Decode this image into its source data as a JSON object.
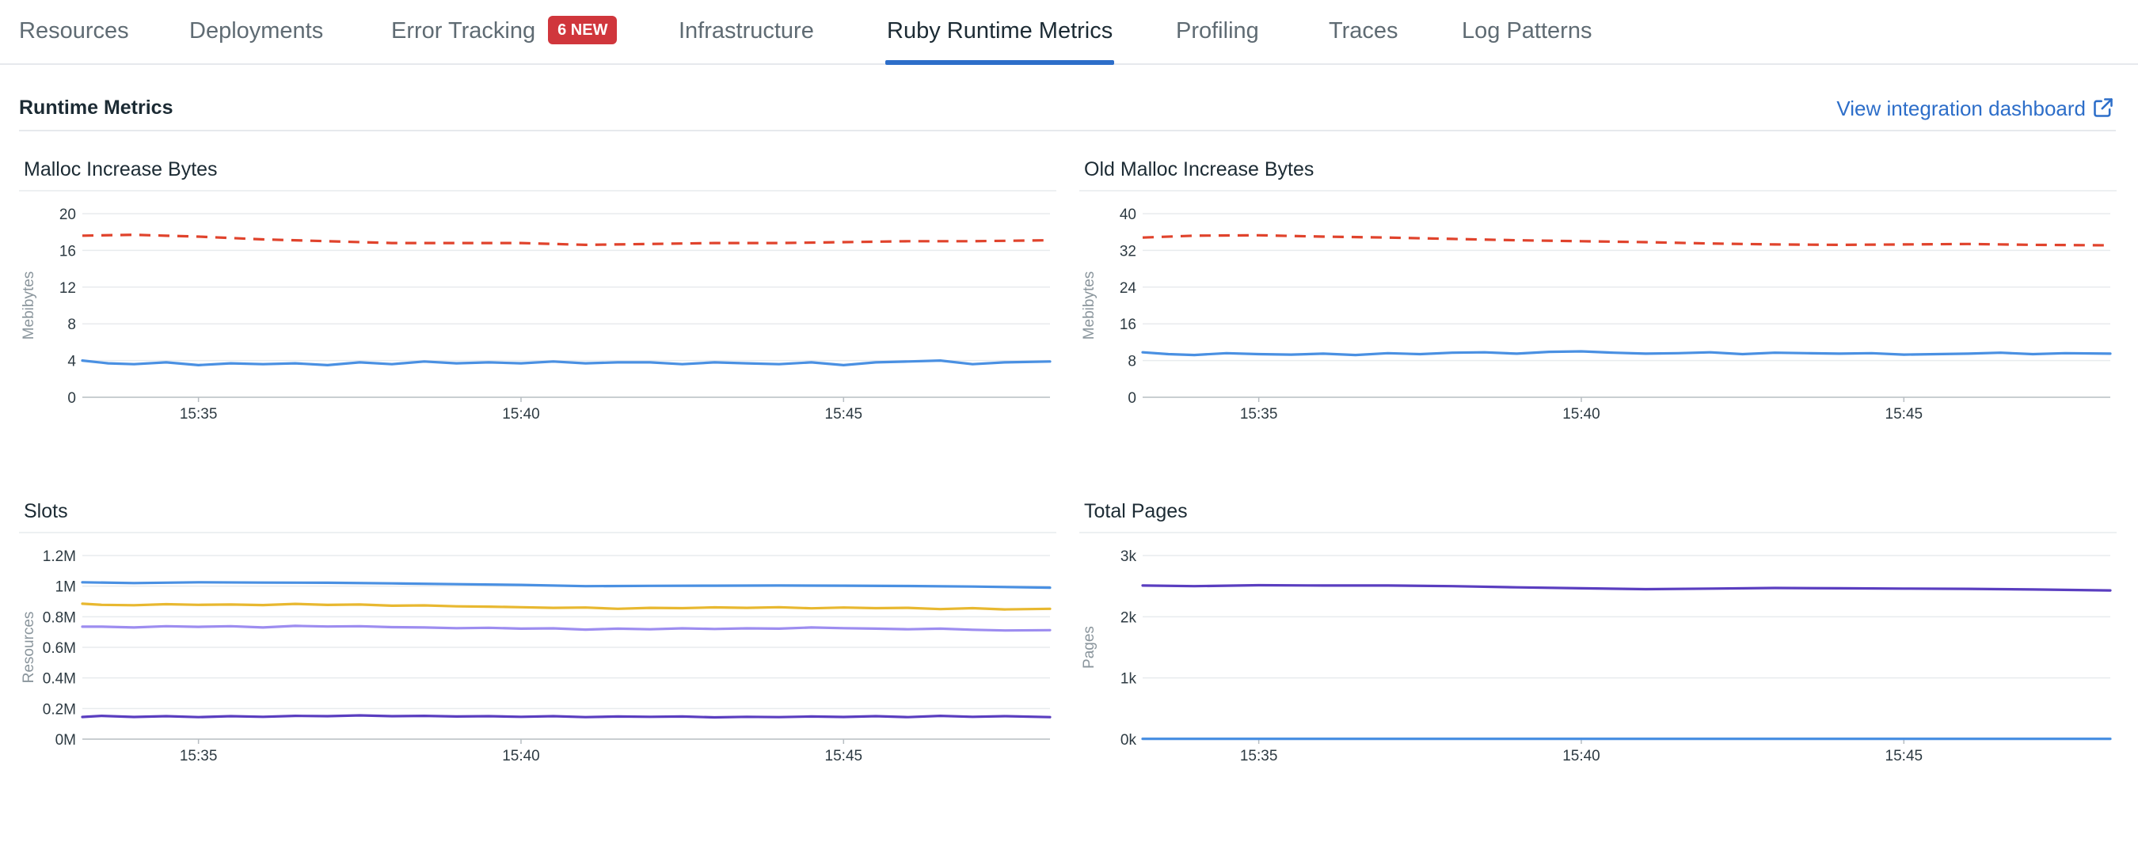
{
  "tabs": [
    {
      "label": "Resources",
      "active": false
    },
    {
      "label": "Deployments",
      "active": false
    },
    {
      "label": "Error Tracking",
      "active": false,
      "badge": "6 NEW"
    },
    {
      "label": "Infrastructure",
      "active": false
    },
    {
      "label": "Ruby Runtime Metrics",
      "active": true
    },
    {
      "label": "Profiling",
      "active": false
    },
    {
      "label": "Traces",
      "active": false
    },
    {
      "label": "Log Patterns",
      "active": false
    }
  ],
  "section": {
    "title": "Runtime Metrics",
    "link_label": "View integration dashboard",
    "link_icon": "external-link-icon"
  },
  "colors": {
    "accent": "#2d6ec9",
    "badge": "#d0363c",
    "red_dashed": "#e0432c",
    "blue": "#4a90e2",
    "yellow": "#e8b830",
    "lavender": "#9d8df0",
    "purple": "#5a3ec0"
  },
  "chart_data": [
    {
      "id": "malloc",
      "type": "line",
      "title": "Malloc Increase Bytes",
      "ylabel": "Mebibytes",
      "ylim": [
        0,
        20
      ],
      "yticks": [
        0,
        4,
        8,
        12,
        16,
        20
      ],
      "ytick_labels": [
        "0",
        "4",
        "8",
        "12",
        "16",
        "20"
      ],
      "xlim": [
        33.2,
        48.2
      ],
      "xticks": [
        35,
        40,
        45
      ],
      "xtick_labels": [
        "15:35",
        "15:40",
        "15:45"
      ],
      "grid": true,
      "series": [
        {
          "style": "dashed",
          "color": "#e0432c",
          "x": [
            33.2,
            34,
            35,
            36,
            37,
            38,
            39,
            40,
            41,
            42,
            43,
            44,
            45,
            46,
            47,
            48.2
          ],
          "y": [
            17.6,
            17.7,
            17.5,
            17.2,
            17.0,
            16.8,
            16.8,
            16.8,
            16.6,
            16.7,
            16.8,
            16.8,
            16.9,
            17.0,
            17.0,
            17.1
          ]
        },
        {
          "style": "solid",
          "color": "#4a90e2",
          "x": [
            33.2,
            33.6,
            34,
            34.5,
            35,
            35.5,
            36,
            36.5,
            37,
            37.5,
            38,
            38.5,
            39,
            39.5,
            40,
            40.5,
            41,
            41.5,
            42,
            42.5,
            43,
            43.5,
            44,
            44.5,
            45,
            45.5,
            46,
            46.5,
            47,
            47.5,
            48.2
          ],
          "y": [
            4.0,
            3.7,
            3.6,
            3.8,
            3.5,
            3.7,
            3.6,
            3.7,
            3.5,
            3.8,
            3.6,
            3.9,
            3.7,
            3.8,
            3.7,
            3.9,
            3.7,
            3.8,
            3.8,
            3.6,
            3.8,
            3.7,
            3.6,
            3.8,
            3.5,
            3.8,
            3.9,
            4.0,
            3.6,
            3.8,
            3.9
          ]
        }
      ]
    },
    {
      "id": "old-malloc",
      "type": "line",
      "title": "Old Malloc Increase Bytes",
      "ylabel": "Mebibytes",
      "ylim": [
        0,
        40
      ],
      "yticks": [
        0,
        8,
        16,
        24,
        32,
        40
      ],
      "ytick_labels": [
        "0",
        "8",
        "16",
        "24",
        "32",
        "40"
      ],
      "xlim": [
        33.2,
        48.2
      ],
      "xticks": [
        35,
        40,
        45
      ],
      "xtick_labels": [
        "15:35",
        "15:40",
        "15:45"
      ],
      "grid": true,
      "series": [
        {
          "style": "dashed",
          "color": "#e0432c",
          "x": [
            33.2,
            34,
            35,
            36,
            37,
            38,
            39,
            40,
            41,
            42,
            43,
            44,
            45,
            46,
            47,
            48.2
          ],
          "y": [
            34.8,
            35.2,
            35.3,
            35.0,
            34.8,
            34.5,
            34.2,
            34.0,
            33.8,
            33.5,
            33.3,
            33.2,
            33.3,
            33.4,
            33.2,
            33.1
          ]
        },
        {
          "style": "solid",
          "color": "#4a90e2",
          "x": [
            33.2,
            33.6,
            34,
            34.5,
            35,
            35.5,
            36,
            36.5,
            37,
            37.5,
            38,
            38.5,
            39,
            39.5,
            40,
            40.5,
            41,
            41.5,
            42,
            42.5,
            43,
            43.5,
            44,
            44.5,
            45,
            45.5,
            46,
            46.5,
            47,
            47.5,
            48.2
          ],
          "y": [
            9.8,
            9.4,
            9.2,
            9.6,
            9.4,
            9.3,
            9.5,
            9.2,
            9.6,
            9.4,
            9.7,
            9.8,
            9.5,
            9.9,
            10.0,
            9.7,
            9.5,
            9.6,
            9.8,
            9.4,
            9.7,
            9.6,
            9.5,
            9.6,
            9.3,
            9.4,
            9.5,
            9.7,
            9.4,
            9.6,
            9.5
          ]
        }
      ]
    },
    {
      "id": "slots",
      "type": "line",
      "title": "Slots",
      "ylabel": "Resources",
      "ylim": [
        0,
        1200000
      ],
      "yticks": [
        0,
        200000,
        400000,
        600000,
        800000,
        1000000,
        1200000
      ],
      "ytick_labels": [
        "0M",
        "0.2M",
        "0.4M",
        "0.6M",
        "0.8M",
        "1M",
        "1.2M"
      ],
      "xlim": [
        33.2,
        48.2
      ],
      "xticks": [
        35,
        40,
        45
      ],
      "xtick_labels": [
        "15:35",
        "15:40",
        "15:45"
      ],
      "grid": true,
      "series": [
        {
          "style": "solid",
          "color": "#4a90e2",
          "x": [
            33.2,
            34,
            35,
            36,
            37,
            38,
            39,
            40,
            41,
            42,
            43,
            44,
            45,
            46,
            47,
            48.2
          ],
          "y": [
            1025000,
            1020000,
            1025000,
            1023000,
            1022000,
            1018000,
            1013000,
            1008000,
            1000000,
            1002000,
            1003000,
            1004000,
            1003000,
            1001000,
            997000,
            990000
          ]
        },
        {
          "style": "solid",
          "color": "#e8b830",
          "x": [
            33.2,
            33.5,
            34,
            34.5,
            35,
            35.5,
            36,
            36.5,
            37,
            37.5,
            38,
            38.5,
            39,
            39.5,
            40,
            40.5,
            41,
            41.5,
            42,
            42.5,
            43,
            43.5,
            44,
            44.5,
            45,
            45.5,
            46,
            46.5,
            47,
            47.5,
            48.2
          ],
          "y": [
            885000,
            878000,
            875000,
            882000,
            878000,
            880000,
            876000,
            884000,
            877000,
            880000,
            872000,
            874000,
            868000,
            866000,
            862000,
            858000,
            860000,
            852000,
            858000,
            856000,
            861000,
            858000,
            862000,
            855000,
            860000,
            856000,
            858000,
            850000,
            856000,
            848000,
            852000
          ]
        },
        {
          "style": "solid",
          "color": "#9d8df0",
          "x": [
            33.2,
            33.5,
            34,
            34.5,
            35,
            35.5,
            36,
            36.5,
            37,
            37.5,
            38,
            38.5,
            39,
            39.5,
            40,
            40.5,
            41,
            41.5,
            42,
            42.5,
            43,
            43.5,
            44,
            44.5,
            45,
            45.5,
            46,
            46.5,
            47,
            47.5,
            48.2
          ],
          "y": [
            735000,
            735000,
            730000,
            738000,
            734000,
            738000,
            730000,
            740000,
            736000,
            738000,
            732000,
            730000,
            725000,
            728000,
            722000,
            724000,
            716000,
            722000,
            718000,
            724000,
            720000,
            724000,
            722000,
            730000,
            725000,
            722000,
            718000,
            722000,
            715000,
            710000,
            712000
          ]
        },
        {
          "style": "solid",
          "color": "#5a3ec0",
          "x": [
            33.2,
            33.5,
            34,
            34.5,
            35,
            35.5,
            36,
            36.5,
            37,
            37.5,
            38,
            38.5,
            39,
            39.5,
            40,
            40.5,
            41,
            41.5,
            42,
            42.5,
            43,
            43.5,
            44,
            44.5,
            45,
            45.5,
            46,
            46.5,
            47,
            47.5,
            48.2
          ],
          "y": [
            145000,
            152000,
            145000,
            150000,
            144000,
            150000,
            146000,
            152000,
            150000,
            155000,
            150000,
            152000,
            148000,
            150000,
            146000,
            150000,
            144000,
            148000,
            146000,
            148000,
            142000,
            146000,
            144000,
            148000,
            145000,
            150000,
            144000,
            152000,
            146000,
            150000,
            144000
          ]
        }
      ]
    },
    {
      "id": "total-pages",
      "type": "line",
      "title": "Total Pages",
      "ylabel": "Pages",
      "ylim": [
        0,
        3000
      ],
      "yticks": [
        0,
        1000,
        2000,
        3000
      ],
      "ytick_labels": [
        "0k",
        "1k",
        "2k",
        "3k"
      ],
      "xlim": [
        33.2,
        48.2
      ],
      "xticks": [
        35,
        40,
        45
      ],
      "xtick_labels": [
        "15:35",
        "15:40",
        "15:45"
      ],
      "grid": true,
      "series": [
        {
          "style": "solid",
          "color": "#5a3ec0",
          "x": [
            33.2,
            34,
            35,
            36,
            37,
            38,
            39,
            40,
            41,
            42,
            43,
            44,
            45,
            46,
            47,
            48.2
          ],
          "y": [
            2510,
            2500,
            2515,
            2510,
            2510,
            2500,
            2480,
            2465,
            2450,
            2460,
            2470,
            2465,
            2460,
            2455,
            2445,
            2430
          ]
        },
        {
          "style": "solid",
          "color": "#4a90e2",
          "x": [
            33.2,
            48.2
          ],
          "y": [
            5,
            5
          ]
        }
      ]
    }
  ]
}
